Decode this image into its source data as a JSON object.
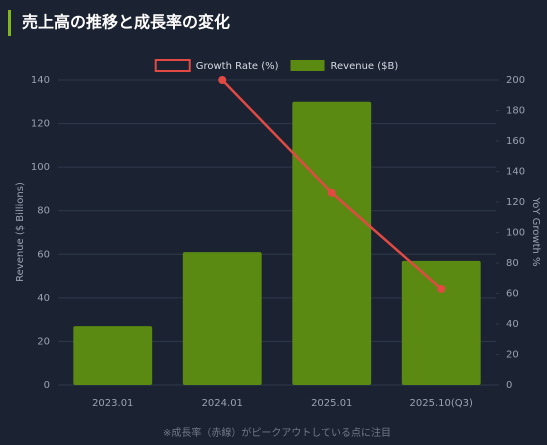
{
  "chart_data": {
    "type": "bar",
    "title": "売上高の推移と成長率の変化",
    "categories": [
      "2023.01",
      "2024.01",
      "2025.01",
      "2025.10(Q3)"
    ],
    "series": [
      {
        "name": "Revenue ($B)",
        "type": "bar",
        "color": "#5b8a12",
        "values": [
          27,
          61,
          130,
          57
        ]
      },
      {
        "name": "Growth Rate (%)",
        "type": "line",
        "axis": "y2",
        "color": "#e04a43",
        "values": [
          null,
          200,
          126,
          63
        ]
      }
    ],
    "ylabel": "Revenue ($ Billions)",
    "y2label": "YoY Growth %",
    "ylim": [
      0,
      140
    ],
    "yticks": [
      0,
      20,
      40,
      60,
      80,
      100,
      120,
      140
    ],
    "y2lim": [
      0,
      200
    ],
    "y2ticks": [
      0,
      20,
      40,
      60,
      80,
      100,
      120,
      140,
      160,
      180,
      200
    ],
    "grid": true,
    "note": "※成長率（赤線）がピークアウトしている点に注目"
  }
}
